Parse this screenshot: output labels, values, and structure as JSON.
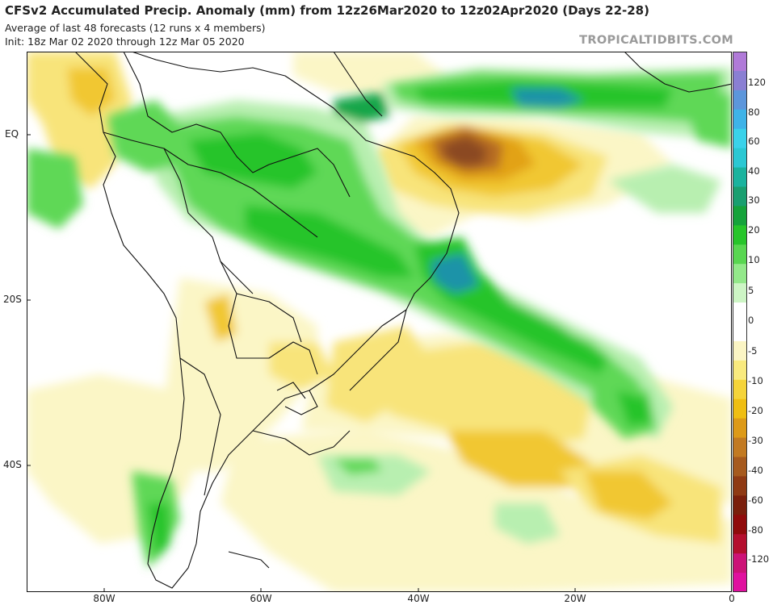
{
  "header": {
    "title": "CFSv2 Accumulated Precip. Anomaly (mm) from 12z26Mar2020 to 12z02Apr2020 (Days 22-28)",
    "subtitle_1": "Average of last 48 forecasts (12 runs x 4 members)",
    "subtitle_2": "Init: 18z Mar 02 2020 through 12z Mar 05 2020",
    "watermark": "TROPICALTIDBITS.COM"
  },
  "axes": {
    "lat_labels": [
      "EQ",
      "20S",
      "40S"
    ],
    "lon_labels": [
      "80W",
      "60W",
      "40W",
      "20W",
      "0"
    ]
  },
  "colorbar": {
    "unit": "mm",
    "labels": [
      "120",
      "80",
      "60",
      "40",
      "30",
      "20",
      "10",
      "5",
      "0",
      "-5",
      "-10",
      "-20",
      "-30",
      "-40",
      "-60",
      "-80",
      "-120"
    ],
    "colors": [
      "#e0119f",
      "#cc1377",
      "#b40f2e",
      "#900b0b",
      "#7a1f0c",
      "#8f3a14",
      "#a65a1e",
      "#c27a22",
      "#dd9a18",
      "#efbe12",
      "#f5d43a",
      "#f9ea7e",
      "#fbf5c4",
      "#ffffff",
      "#ffffff",
      "#cdf5c5",
      "#93e88a",
      "#59d651",
      "#27c52a",
      "#16a33b",
      "#1a9f70",
      "#1ab39e",
      "#2bc8d3",
      "#3ad2ea",
      "#3eb3e8",
      "#5c96db",
      "#8a7fd3",
      "#b07ad8"
    ]
  },
  "map": {
    "region": "South America and South Atlantic",
    "colors": {
      "ocean": "#ffffff",
      "wet_light": "#b8efb0",
      "wet_mid": "#5fd856",
      "wet_strong": "#25c42a",
      "wet_deep": "#14a64a",
      "wet_core": "#1e93a8",
      "dry_light": "#fbf6c6",
      "dry_mid": "#f8e47a",
      "dry_strong": "#f1c731",
      "dry_deep": "#e2a218",
      "dry_core": "#b56a23",
      "dry_center": "#8b4a22",
      "border": "#111111"
    }
  }
}
